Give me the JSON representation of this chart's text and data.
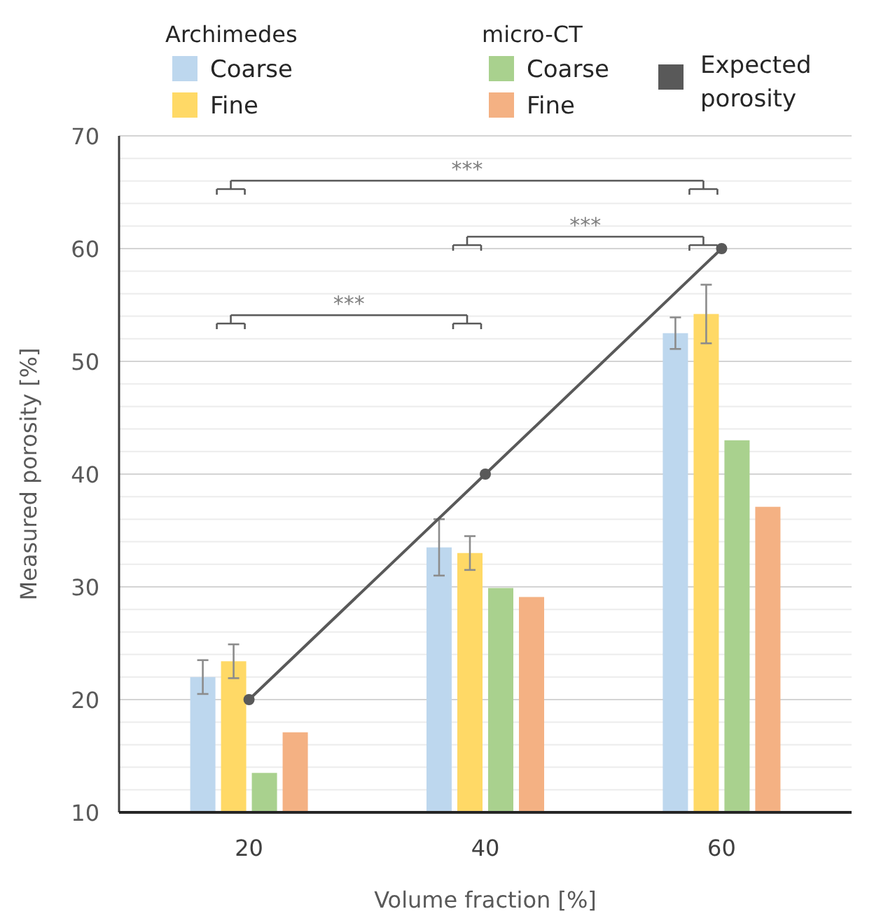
{
  "chart_data": {
    "type": "bar",
    "xlabel": "Volume fraction [%]",
    "ylabel": "Measured porosity [%]",
    "categories": [
      "20",
      "40",
      "60"
    ],
    "series": [
      {
        "name": "Coarse",
        "color": "#bdd7ee",
        "values": [
          22.0,
          33.5,
          52.5
        ],
        "errors": [
          1.5,
          2.5,
          1.4
        ]
      },
      {
        "name": "Fine",
        "color": "#ffd966",
        "values": [
          23.4,
          33.0,
          54.2
        ],
        "errors": [
          1.5,
          1.5,
          2.6
        ]
      },
      {
        "name": "Coarse",
        "color": "#a9d18e",
        "values": [
          13.5,
          29.9,
          43.0
        ]
      },
      {
        "name": "Fine",
        "color": "#f4b183",
        "values": [
          17.1,
          29.1,
          37.1
        ]
      },
      {
        "name": "Expected porosity",
        "type": "line",
        "color": "#595959",
        "values": [
          20,
          40,
          60
        ],
        "marker": "circle"
      }
    ],
    "ylim": [
      10,
      70
    ],
    "yticks": [
      10,
      {
        "value": 12,
        "label": null
      },
      {
        "value": 14,
        "label": null
      },
      {
        "value": 16,
        "label": null
      },
      {
        "value": 18,
        "label": null
      },
      20,
      {
        "value": 22,
        "label": null
      },
      {
        "value": 24,
        "label": null
      },
      {
        "value": 26,
        "label": null
      },
      {
        "value": 28,
        "label": null
      },
      30,
      {
        "value": 32,
        "label": null
      },
      {
        "value": 34,
        "label": null
      },
      {
        "value": 36,
        "label": null
      },
      {
        "value": 38,
        "label": null
      },
      40,
      {
        "value": 42,
        "label": null
      },
      {
        "value": 44,
        "label": null
      },
      {
        "value": 46,
        "label": null
      },
      {
        "value": 48,
        "label": null
      },
      50,
      {
        "value": 52,
        "label": null
      },
      {
        "value": 54,
        "label": null
      },
      {
        "value": 56,
        "label": null
      },
      {
        "value": 58,
        "label": null
      },
      60,
      {
        "value": 62,
        "label": null
      },
      {
        "value": 64,
        "label": null
      },
      {
        "value": 66,
        "label": null
      },
      {
        "value": 68,
        "label": null
      },
      70
    ],
    "grid": "y",
    "legend": "top",
    "annotations": [
      "Archimedes",
      "micro-CT",
      "***",
      "***",
      "***"
    ]
  }
}
